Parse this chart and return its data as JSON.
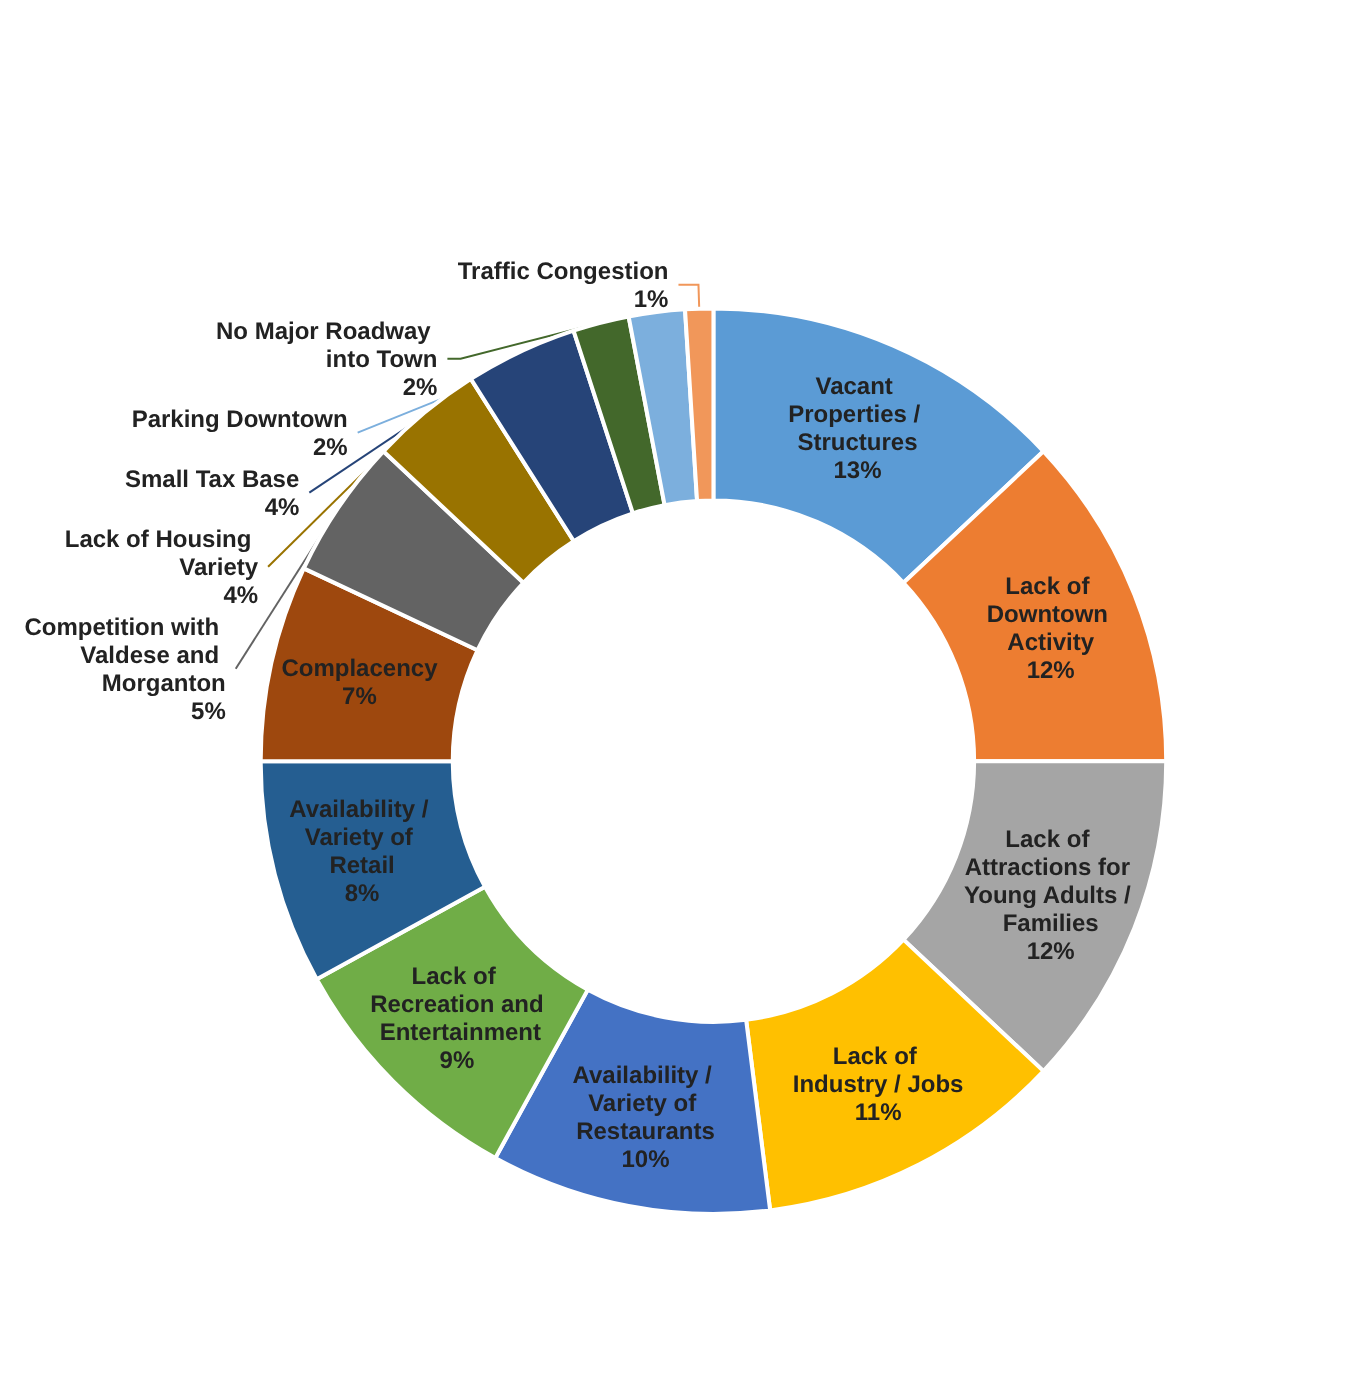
{
  "chart_data": {
    "type": "donut",
    "categories": [
      "Vacant Properties / Structures",
      "Lack of Downtown Activity",
      "Lack of Attractions for Young Adults / Families",
      "Lack of Industry / Jobs",
      "Availability / Variety of Restaurants",
      "Lack of Recreation and Entertainment",
      "Availability / Variety of Retail",
      "Complacency",
      "Competition with Valdese and Morganton",
      "Lack of Housing Variety",
      "Small Tax Base",
      "No Major Roadway into Town",
      "Parking Downtown",
      "Traffic Congestion"
    ],
    "values": [
      13,
      12,
      12,
      11,
      10,
      9,
      8,
      7,
      5,
      4,
      4,
      2,
      2,
      1
    ],
    "colors": [
      "#5b9bd5",
      "#ed7d31",
      "#a5a5a5",
      "#ffc000",
      "#4472c4",
      "#70ad47",
      "#255e91",
      "#9e480e",
      "#636363",
      "#997300",
      "#264478",
      "#43682b",
      "#7cafdd",
      "#f1975a"
    ],
    "value_labels": [
      "13%",
      "12%",
      "12%",
      "11%",
      "10%",
      "9%",
      "8%",
      "7%",
      "5%",
      "4%",
      "4%",
      "2%",
      "2%",
      "1%"
    ],
    "legend": false
  }
}
